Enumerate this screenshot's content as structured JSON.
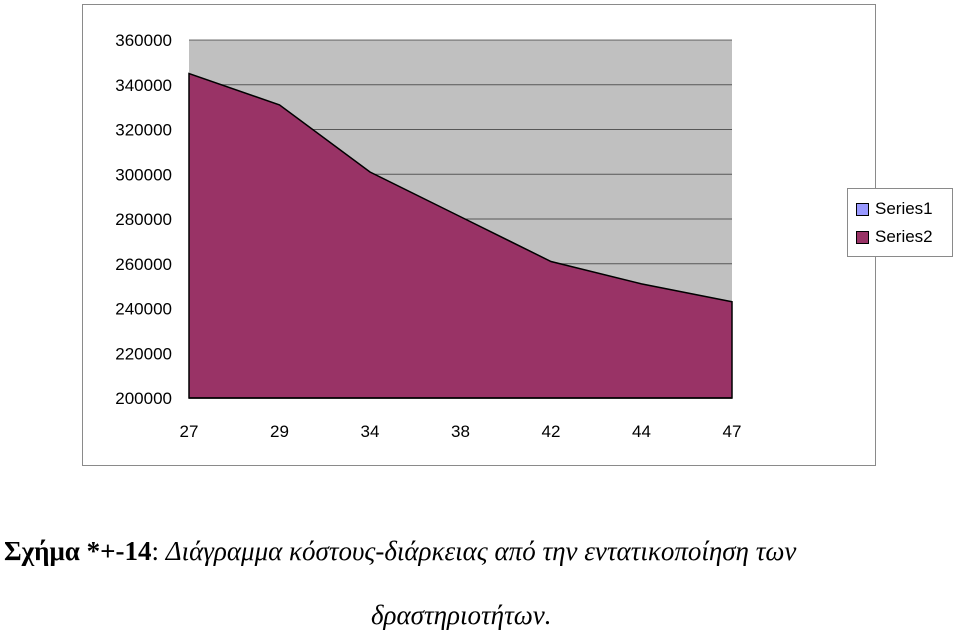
{
  "chart_data": {
    "type": "area",
    "categories": [
      "27",
      "29",
      "34",
      "38",
      "42",
      "44",
      "47"
    ],
    "series": [
      {
        "name": "Series1",
        "values": [
          360000,
          360000,
          360000,
          360000,
          360000,
          360000,
          360000
        ],
        "color": "#c0c0c0",
        "legend_color": "#9999ff"
      },
      {
        "name": "Series2",
        "values": [
          345000,
          331000,
          301000,
          281000,
          261000,
          251000,
          243000
        ],
        "color": "#993366",
        "legend_color": "#993366"
      }
    ],
    "ylim": [
      200000,
      360000
    ],
    "yticks": [
      "360000",
      "340000",
      "320000",
      "300000",
      "280000",
      "260000",
      "240000",
      "220000",
      "200000"
    ],
    "grid": true,
    "legend_position": "right"
  },
  "caption": {
    "label": "Σχήμα *+-14",
    "separator": ":",
    "text_line1": "Διάγραμμα κόστους-διάρκειας από την εντατικοποίηση των",
    "text_line2": "δραστηριοτήτων."
  }
}
